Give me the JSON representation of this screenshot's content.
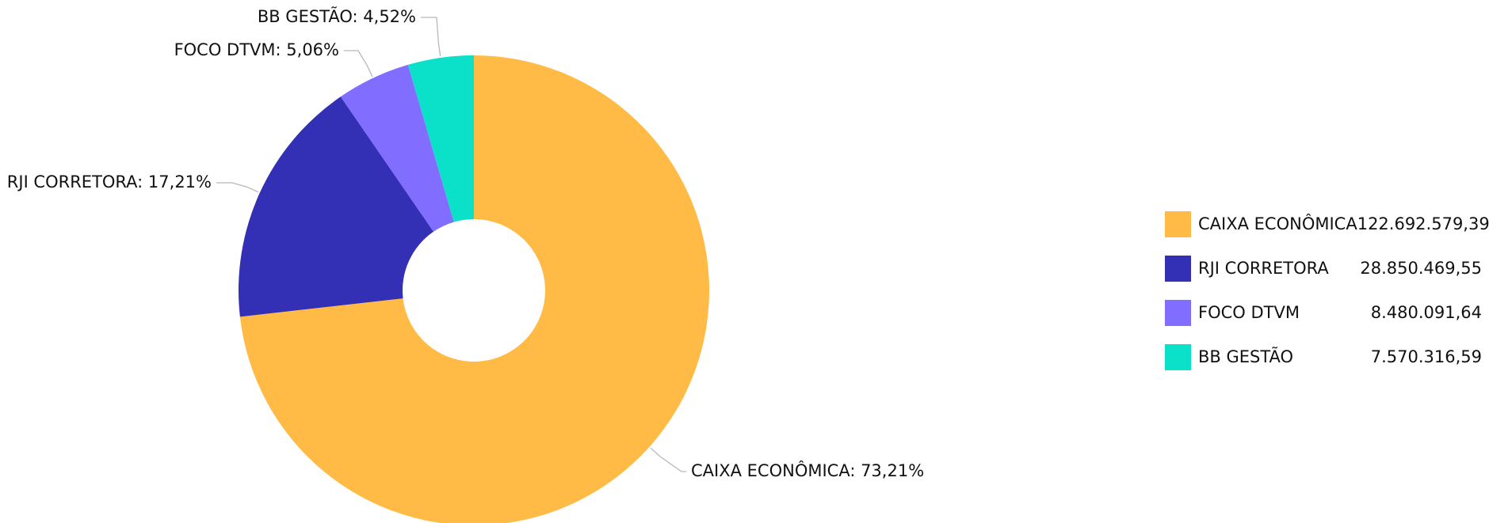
{
  "chart_data": {
    "type": "pie",
    "donut": true,
    "title": "",
    "slices": [
      {
        "name": "CAIXA ECONÔMICA",
        "value": 122692579.39,
        "value_label": "122.692.579,39",
        "percent": 73.21,
        "percent_label": "CAIXA ECONÔMICA: 73,21%",
        "color": "#FFBB45"
      },
      {
        "name": "RJI CORRETORA",
        "value": 28850469.55,
        "value_label": "28.850.469,55",
        "percent": 17.21,
        "percent_label": "RJI CORRETORA: 17,21%",
        "color": "#3330B6"
      },
      {
        "name": "FOCO DTVM",
        "value": 8480091.64,
        "value_label": "8.480.091,64",
        "percent": 5.06,
        "percent_label": "FOCO DTVM: 5,06%",
        "color": "#816DFF"
      },
      {
        "name": "BB GESTÃO",
        "value": 7570316.59,
        "value_label": "7.570.316,59",
        "percent": 4.52,
        "percent_label": "BB GESTÃO: 4,52%",
        "color": "#0BE0C8"
      }
    ],
    "legend_position": "right",
    "leader_color": "#B8B8B8"
  }
}
